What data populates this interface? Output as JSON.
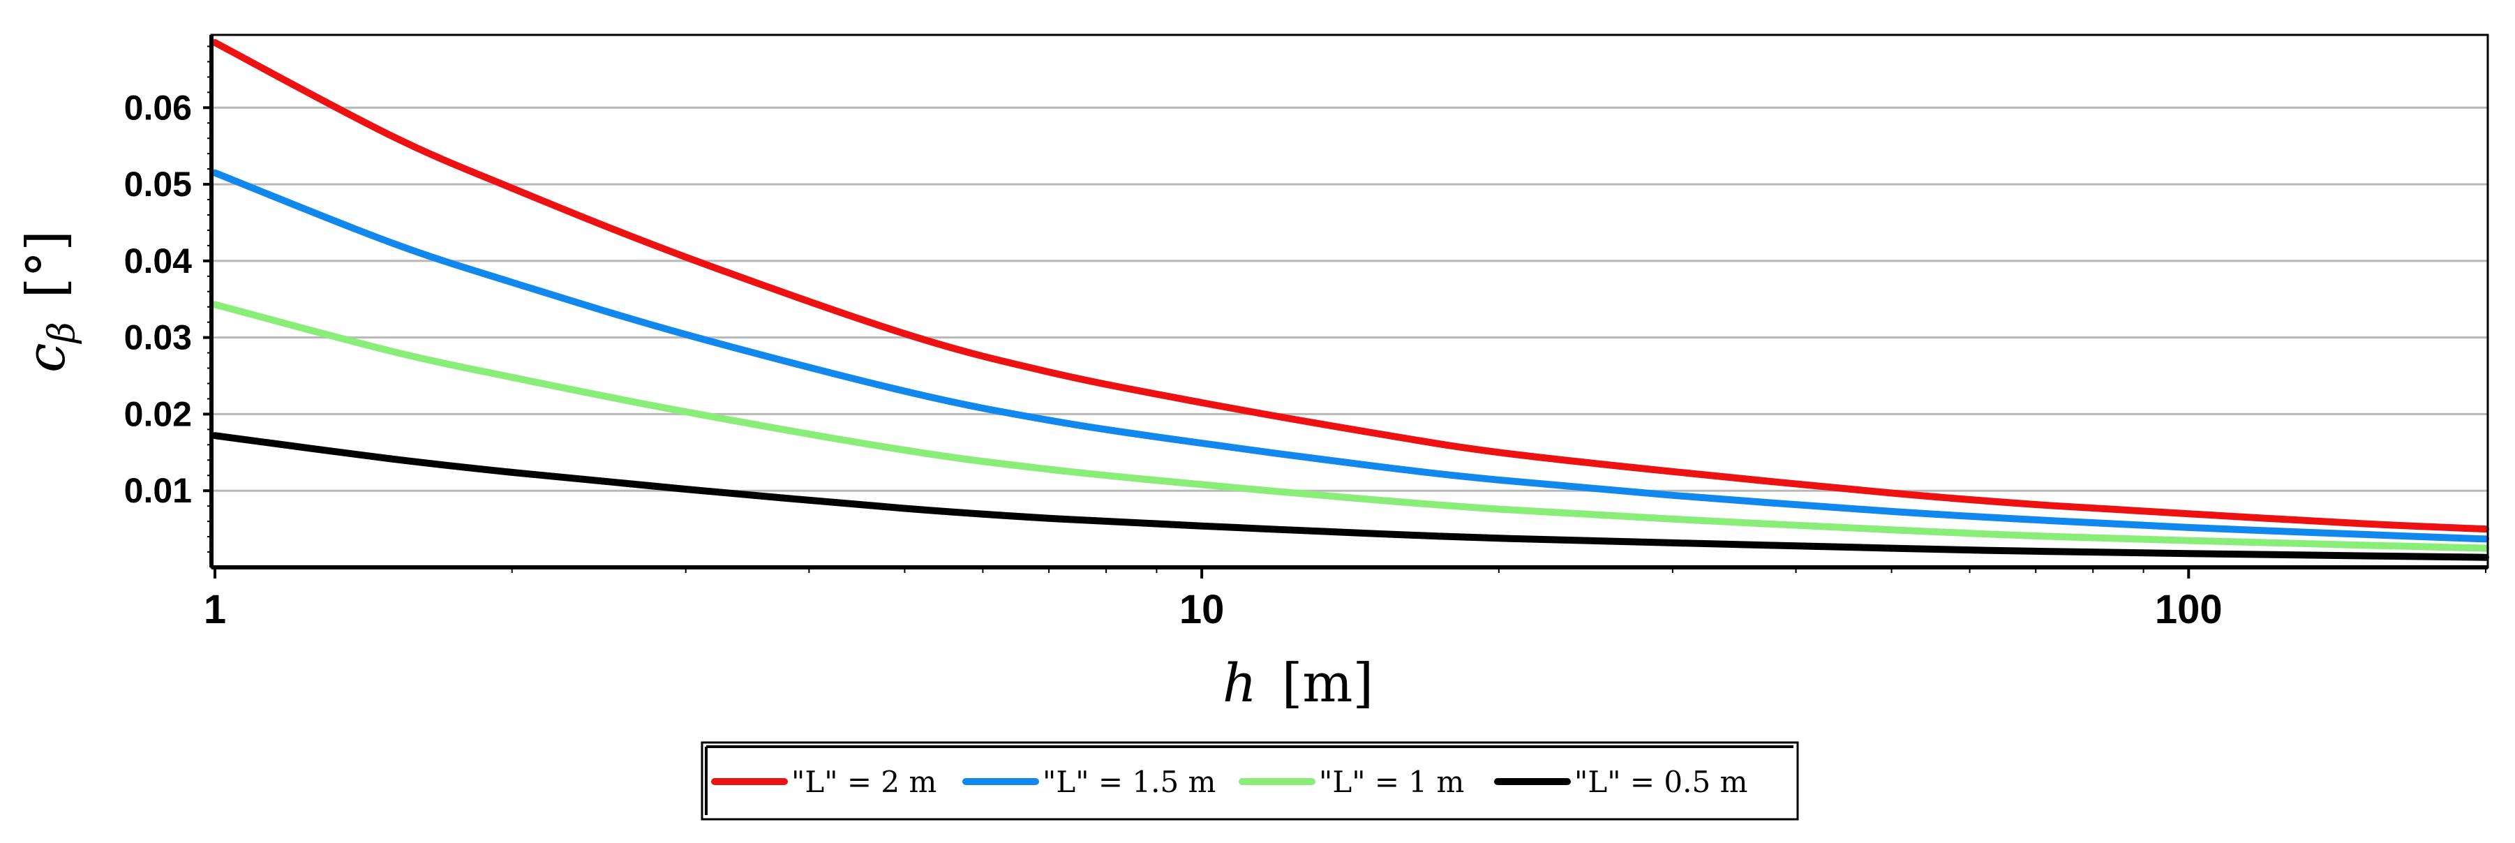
{
  "chart_data": {
    "type": "line",
    "xscale": "log",
    "xlim": [
      1,
      200
    ],
    "ylim": [
      0,
      0.0695
    ],
    "xlabel_var": "h",
    "xlabel_unit": "[m]",
    "ylabel_var": "c",
    "ylabel_sub": "β",
    "ylabel_unit": "[°]",
    "xticks": [
      {
        "value": 1,
        "label": "1"
      },
      {
        "value": 10,
        "label": "10"
      },
      {
        "value": 100,
        "label": "100"
      }
    ],
    "yticks": [
      {
        "value": 0.01,
        "label": "0.01"
      },
      {
        "value": 0.02,
        "label": "0.02"
      },
      {
        "value": 0.03,
        "label": "0.03"
      },
      {
        "value": 0.04,
        "label": "0.04"
      },
      {
        "value": 0.05,
        "label": "0.05"
      },
      {
        "value": 0.06,
        "label": "0.06"
      }
    ],
    "grid": "horizontal",
    "legend_position": "bottom",
    "series": [
      {
        "name": "\"L\" = 2 m",
        "color": "#ee1111",
        "x": [
          1,
          1.5,
          2,
          3,
          5,
          7,
          10,
          15,
          20,
          30,
          50,
          70,
          100,
          150,
          200
        ],
        "y": [
          0.0685,
          0.0565,
          0.0495,
          0.0405,
          0.0305,
          0.0255,
          0.0215,
          0.0175,
          0.015,
          0.0125,
          0.0097,
          0.0082,
          0.007,
          0.0057,
          0.005
        ]
      },
      {
        "name": "\"L\" = 1.5 m",
        "color": "#1188ee",
        "x": [
          1,
          1.5,
          2,
          3,
          5,
          7,
          10,
          15,
          20,
          30,
          50,
          70,
          100,
          150,
          200
        ],
        "y": [
          0.0515,
          0.0425,
          0.0372,
          0.0304,
          0.023,
          0.0192,
          0.0162,
          0.0132,
          0.0114,
          0.0094,
          0.0073,
          0.0062,
          0.0052,
          0.0043,
          0.0037
        ]
      },
      {
        "name": "\"L\" = 1 m",
        "color": "#88ee77",
        "x": [
          1,
          1.5,
          2,
          3,
          5,
          7,
          10,
          15,
          20,
          30,
          50,
          70,
          100,
          150,
          200
        ],
        "y": [
          0.0343,
          0.0283,
          0.0248,
          0.0203,
          0.0153,
          0.0128,
          0.0108,
          0.0088,
          0.0076,
          0.0063,
          0.0049,
          0.0041,
          0.0035,
          0.0029,
          0.0025
        ]
      },
      {
        "name": "\"L\" = 0.5 m",
        "color": "#000000",
        "x": [
          1,
          1.5,
          2,
          3,
          5,
          7,
          10,
          15,
          20,
          30,
          50,
          70,
          100,
          150,
          200
        ],
        "y": [
          0.0172,
          0.0142,
          0.0124,
          0.0102,
          0.0077,
          0.0064,
          0.0054,
          0.0044,
          0.0038,
          0.0032,
          0.0025,
          0.0021,
          0.0018,
          0.0015,
          0.0013
        ]
      }
    ]
  }
}
